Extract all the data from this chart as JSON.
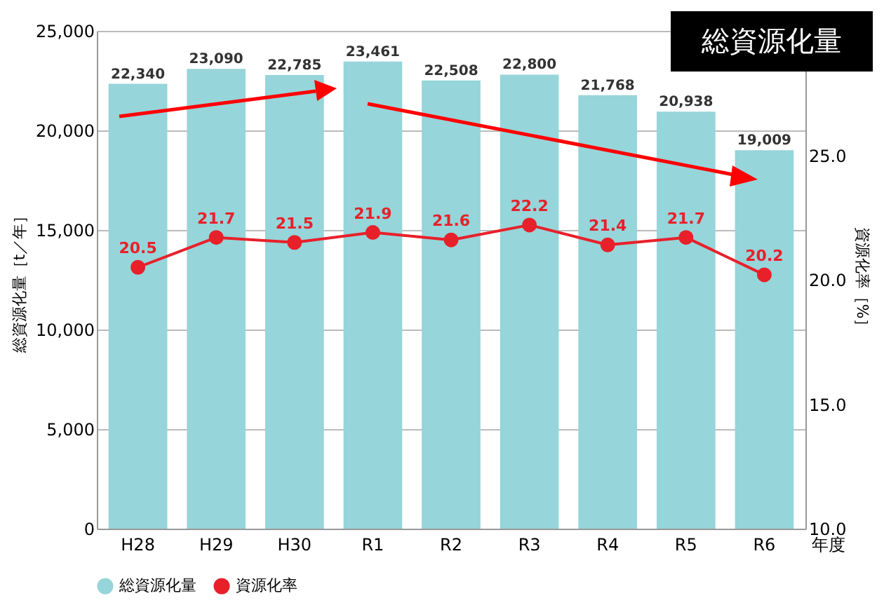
{
  "chart_data": {
    "type": "bar",
    "title": "総資源化量",
    "xlabel": "年度",
    "ylabel": "総資源化量［t／年］",
    "y2label": "資源化率［%］",
    "categories": [
      "H28",
      "H29",
      "H30",
      "R1",
      "R2",
      "R3",
      "R4",
      "R5",
      "R6"
    ],
    "series": [
      {
        "name": "総資源化量",
        "color": "#96d5da",
        "values": [
          22340,
          23090,
          22785,
          23461,
          22508,
          22800,
          21768,
          20938,
          19009
        ],
        "value_labels": [
          "22,340",
          "23,090",
          "22,785",
          "23,461",
          "22,508",
          "22,800",
          "21,768",
          "20,938",
          "19,009"
        ]
      },
      {
        "name": "資源化率",
        "type": "line",
        "axis": "y2",
        "color": "#e8202a",
        "values": [
          20.5,
          21.7,
          21.5,
          21.9,
          21.6,
          22.2,
          21.4,
          21.7,
          20.2
        ],
        "value_labels": [
          "20.5",
          "21.7",
          "21.5",
          "21.9",
          "21.6",
          "22.2",
          "21.4",
          "21.7",
          "20.2"
        ]
      }
    ],
    "ylim": [
      0,
      25000
    ],
    "yticks": [
      0,
      {
        "value": 5000,
        "label": "5,000"
      },
      {
        "value": 10000,
        "label": "10,000"
      },
      {
        "value": 15000,
        "label": "15,000"
      },
      {
        "value": 20000,
        "label": "20,000"
      },
      {
        "value": 25000,
        "label": "25,000"
      }
    ],
    "y2lim": [
      10,
      30
    ],
    "y2ticks": [
      {
        "value": 10,
        "label": "10.0"
      },
      {
        "value": 15,
        "label": "15.0"
      },
      {
        "value": 20,
        "label": "20.0"
      },
      {
        "value": 25,
        "label": "25.0"
      }
    ],
    "grid": "y",
    "legend": "bottom",
    "marker": "circle"
  }
}
